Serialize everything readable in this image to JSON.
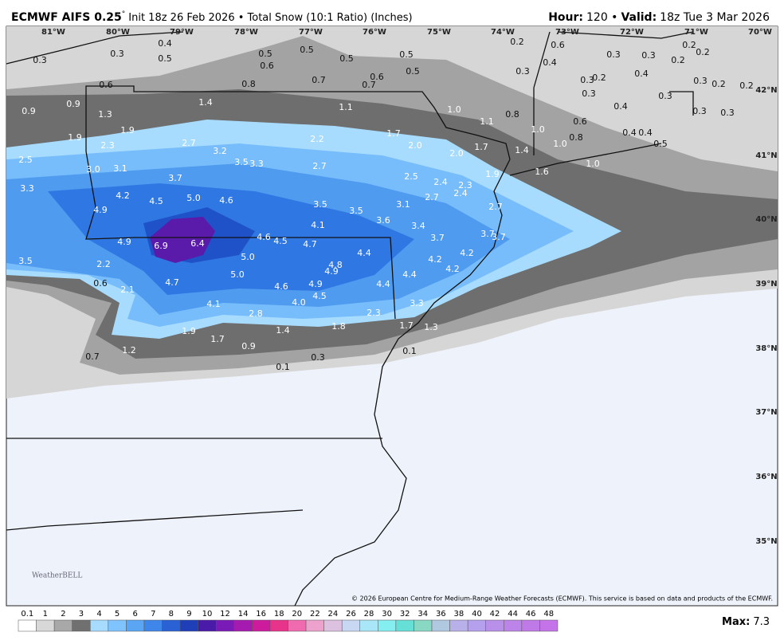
{
  "header": {
    "model": "ECMWF AIFS 0.25",
    "degree": "°",
    "description": "Init 18z 26 Feb 2026 • Total Snow (10:1 Ratio) (Inches)",
    "hour_label": "Hour:",
    "hour": "120 •",
    "valid_label": "Valid:",
    "valid": "18z Tue 3 Mar 2026"
  },
  "map": {
    "longitudes": [
      "81°W",
      "80°W",
      "79°W",
      "78°W",
      "77°W",
      "76°W",
      "75°W",
      "74°W",
      "73°W",
      "72°W",
      "71°W",
      "70°W"
    ],
    "latitudes": [
      "42°N",
      "41°N",
      "40°N",
      "39°N",
      "38°N",
      "37°N",
      "36°N",
      "35°N"
    ],
    "labels": [
      "0.3",
      "0.3",
      "0.4",
      "0.5",
      "0.5",
      "0.6",
      "0.5",
      "0.5",
      "0.5",
      "0.5",
      "0.6",
      "0.7",
      "0.7",
      "0.8",
      "0.6",
      "0.2",
      "0.6",
      "0.4",
      "0.3",
      "0.3",
      "0.3",
      "0.2",
      "0.2",
      "0.2",
      "0.4",
      "0.3",
      "0.2",
      "0.3",
      "0.3",
      "0.2",
      "0.2",
      "0.4",
      "0.3",
      "0.3",
      "0.3",
      "0.6",
      "0.8",
      "1.0",
      "1.1",
      "1.0",
      "1.0",
      "0.8",
      "0.4",
      "0.4",
      "0.5",
      "1.0",
      "0.9",
      "1.3",
      "0.9",
      "1.4",
      "1.1",
      "1.9",
      "1.9",
      "2.3",
      "2.7",
      "2.2",
      "1.7",
      "2.0",
      "1.7",
      "1.4",
      "2.0",
      "1.9",
      "1.6",
      "2.5",
      "3.0",
      "3.1",
      "3.2",
      "3.5",
      "3.3",
      "2.7",
      "3.7",
      "2.5",
      "2.4",
      "2.3",
      "2.4",
      "2.7",
      "3.3",
      "4.2",
      "4.5",
      "5.0",
      "4.6",
      "4.9",
      "3.5",
      "3.5",
      "3.1",
      "2.7",
      "3.6",
      "4.1",
      "3.4",
      "3.7",
      "3.7",
      "3.7",
      "4.9",
      "6.9",
      "6.4",
      "4.6",
      "4.5",
      "4.7",
      "4.4",
      "4.2",
      "4.2",
      "4.2",
      "3.5",
      "2.2",
      "5.0",
      "4.8",
      "4.9",
      "5.0",
      "4.4",
      "0.6",
      "2.1",
      "4.7",
      "4.6",
      "4.9",
      "4.5",
      "4.4",
      "4.0",
      "4.1",
      "3.3",
      "2.8",
      "2.3",
      "1.4",
      "1.8",
      "1.7",
      "1.3",
      "1.9",
      "1.7",
      "0.9",
      "1.2",
      "0.7",
      "0.1",
      "0.3",
      "0.1"
    ],
    "copyright": "© 2026 European Centre for Medium-Range Weather Forecasts (ECMWF). This service is based on data and products of the ECMWF.",
    "logo": "WeatherBELL"
  },
  "colorbar": {
    "ticks": [
      0.1,
      1,
      2,
      3,
      4,
      5,
      6,
      7,
      8,
      9,
      10,
      12,
      14,
      16,
      18,
      20,
      22,
      24,
      26,
      28,
      30,
      32,
      34,
      36,
      38,
      40,
      42,
      44,
      46,
      48
    ],
    "colors": [
      "#ffffff",
      "#d8d8d8",
      "#a8a8a8",
      "#707070",
      "#a8dcff",
      "#80c4ff",
      "#5aa6f5",
      "#3f86ea",
      "#2a62d6",
      "#1e3fb8",
      "#4a1ba8",
      "#7a1bb8",
      "#a51bb0",
      "#cc1b9c",
      "#e8338a",
      "#f06ab0",
      "#eca2cc",
      "#dcc2e0",
      "#c8d8f2",
      "#a8e6f8",
      "#84eef0",
      "#66e0d6",
      "#88d8c4",
      "#b0c8e0",
      "#b8b0e8",
      "#b4a0ec",
      "#b890ea",
      "#bc84e8",
      "#c07ae8",
      "#c474e8"
    ]
  },
  "max": {
    "label": "Max:",
    "value": "7.3"
  }
}
